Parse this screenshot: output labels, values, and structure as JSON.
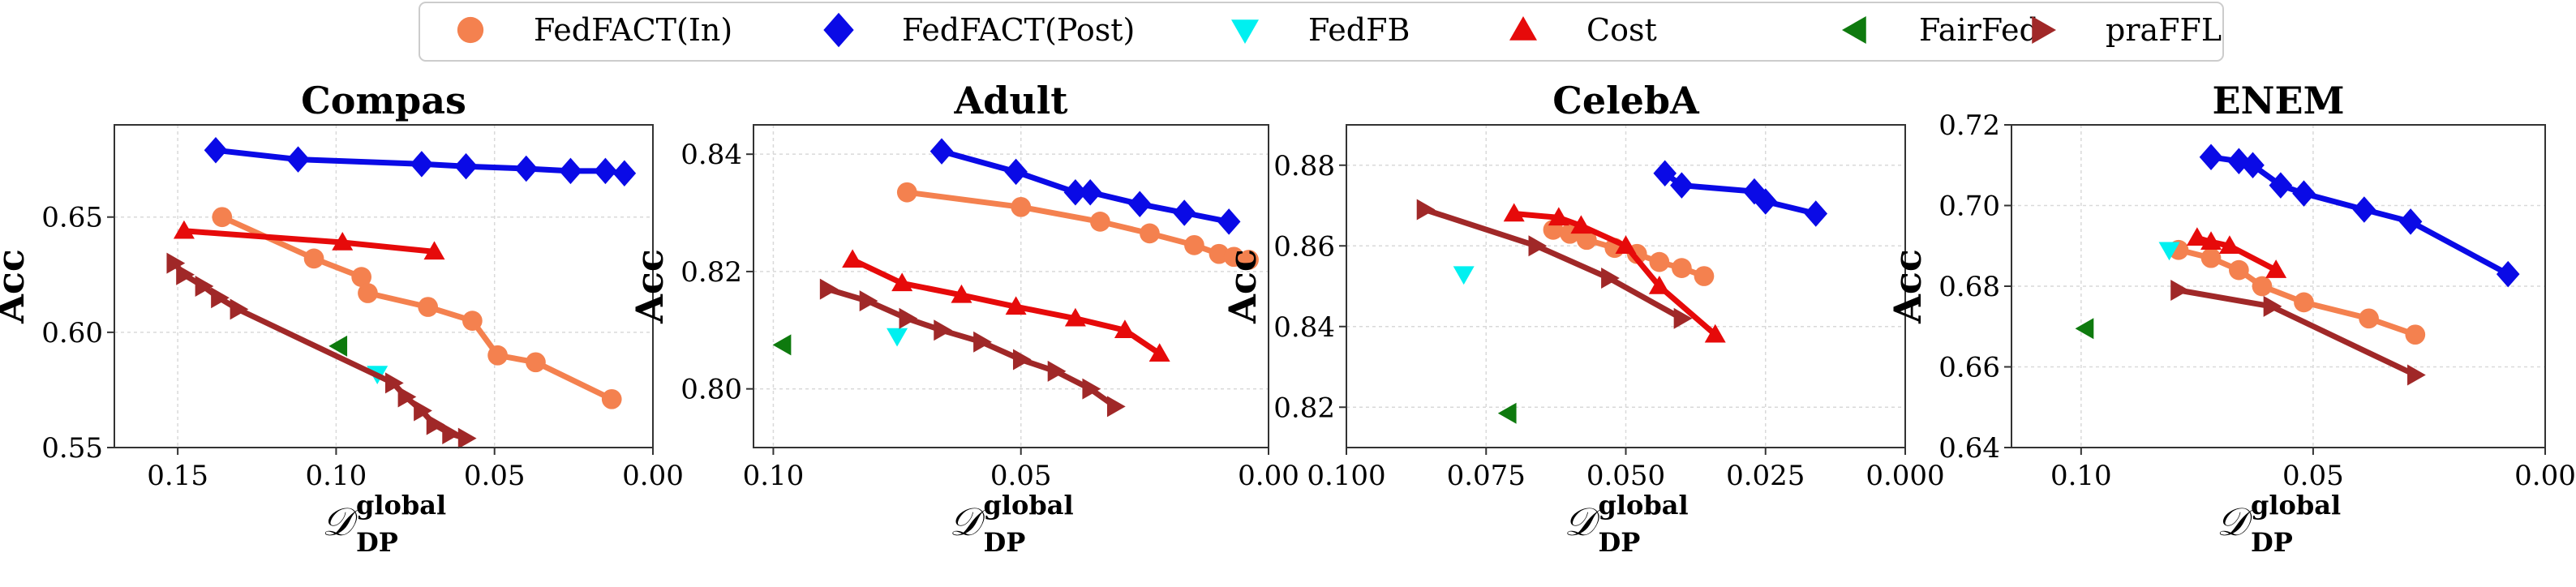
{
  "legend": [
    {
      "label": "FedFACT(In)",
      "marker": "circle",
      "color": "#F4814F"
    },
    {
      "label": "FedFACT(Post)",
      "marker": "diamond",
      "color": "#0A0AE6"
    },
    {
      "label": "FedFB",
      "marker": "triangle-down",
      "color": "#00F0F0"
    },
    {
      "label": "Cost",
      "marker": "triangle-up",
      "color": "#E60A0A"
    },
    {
      "label": "FairFed",
      "marker": "triangle-left",
      "color": "#0E7A0E"
    },
    {
      "label": "praFFL",
      "marker": "triangle-right",
      "color": "#A02828"
    }
  ],
  "axis_labels": {
    "y": "Acc",
    "x_main": "𝒟",
    "x_sup": "global",
    "x_sub": "DP"
  },
  "chart_data": [
    {
      "type": "line",
      "title": "Compas",
      "xlabel": "D_DP^global",
      "ylabel": "Acc",
      "xlim": [
        0.17,
        0.0
      ],
      "ylim": [
        0.55,
        0.69
      ],
      "xticks": [
        0.15,
        0.1,
        0.05,
        0.0
      ],
      "yticks": [
        0.55,
        0.6,
        0.65
      ],
      "xtick_labels": [
        "0.15",
        "0.10",
        "0.05",
        "0.00"
      ],
      "ytick_labels": [
        "0.55",
        "0.60",
        "0.65"
      ],
      "series": [
        {
          "name": "FedFACT(In)",
          "x": [
            0.136,
            0.107,
            0.092,
            0.09,
            0.071,
            0.057,
            0.049,
            0.037,
            0.013
          ],
          "y": [
            0.65,
            0.632,
            0.624,
            0.617,
            0.611,
            0.605,
            0.59,
            0.587,
            0.571
          ]
        },
        {
          "name": "FedFACT(Post)",
          "x": [
            0.138,
            0.112,
            0.073,
            0.059,
            0.04,
            0.026,
            0.015,
            0.009
          ],
          "y": [
            0.679,
            0.675,
            0.673,
            0.672,
            0.671,
            0.67,
            0.67,
            0.669
          ]
        },
        {
          "name": "FedFB",
          "x": [
            0.087
          ],
          "y": [
            0.582
          ]
        },
        {
          "name": "Cost",
          "x": [
            0.148,
            0.098,
            0.069
          ],
          "y": [
            0.644,
            0.639,
            0.635
          ]
        },
        {
          "name": "FairFed",
          "x": [
            0.099
          ],
          "y": [
            0.594
          ]
        },
        {
          "name": "praFFL",
          "x": [
            0.151,
            0.148,
            0.142,
            0.137,
            0.131,
            0.082,
            0.078,
            0.073,
            0.069,
            0.064,
            0.059
          ],
          "y": [
            0.63,
            0.625,
            0.62,
            0.615,
            0.61,
            0.578,
            0.572,
            0.566,
            0.56,
            0.556,
            0.554
          ]
        }
      ]
    },
    {
      "type": "line",
      "title": "Adult",
      "xlabel": "D_DP^global",
      "ylabel": "Acc",
      "xlim": [
        0.104,
        0.0
      ],
      "ylim": [
        0.79,
        0.845
      ],
      "xticks": [
        0.1,
        0.05,
        0.0
      ],
      "yticks": [
        0.8,
        0.82,
        0.84
      ],
      "xtick_labels": [
        "0.10",
        "0.05",
        "0.00"
      ],
      "ytick_labels": [
        "0.80",
        "0.82",
        "0.84"
      ],
      "series": [
        {
          "name": "FedFACT(In)",
          "x": [
            0.073,
            0.05,
            0.034,
            0.024,
            0.015,
            0.01,
            0.007,
            0.004
          ],
          "y": [
            0.8335,
            0.831,
            0.8285,
            0.8265,
            0.8245,
            0.823,
            0.8225,
            0.822
          ]
        },
        {
          "name": "FedFACT(Post)",
          "x": [
            0.066,
            0.051,
            0.039,
            0.036,
            0.026,
            0.017,
            0.008
          ],
          "y": [
            0.8405,
            0.837,
            0.8335,
            0.8335,
            0.8315,
            0.83,
            0.8285
          ]
        },
        {
          "name": "FedFB",
          "x": [
            0.075
          ],
          "y": [
            0.809
          ]
        },
        {
          "name": "Cost",
          "x": [
            0.084,
            0.074,
            0.062,
            0.051,
            0.039,
            0.029,
            0.022
          ],
          "y": [
            0.822,
            0.818,
            0.816,
            0.814,
            0.812,
            0.81,
            0.806
          ]
        },
        {
          "name": "FairFed",
          "x": [
            0.098
          ],
          "y": [
            0.8075
          ]
        },
        {
          "name": "praFFL",
          "x": [
            0.089,
            0.081,
            0.073,
            0.066,
            0.058,
            0.05,
            0.043,
            0.036,
            0.031
          ],
          "y": [
            0.817,
            0.815,
            0.812,
            0.81,
            0.808,
            0.805,
            0.803,
            0.8,
            0.797
          ]
        }
      ]
    },
    {
      "type": "line",
      "title": "CelebA",
      "xlabel": "D_DP^global",
      "ylabel": "Acc",
      "xlim": [
        0.1,
        0.0
      ],
      "ylim": [
        0.81,
        0.89
      ],
      "xticks": [
        0.1,
        0.075,
        0.05,
        0.025,
        0.0
      ],
      "yticks": [
        0.82,
        0.84,
        0.86,
        0.88
      ],
      "xtick_labels": [
        "0.100",
        "0.075",
        "0.050",
        "0.025",
        "0.000"
      ],
      "ytick_labels": [
        "0.82",
        "0.84",
        "0.86",
        "0.88"
      ],
      "series": [
        {
          "name": "FedFACT(In)",
          "x": [
            0.063,
            0.06,
            0.057,
            0.052,
            0.048,
            0.044,
            0.04,
            0.036
          ],
          "y": [
            0.864,
            0.863,
            0.8615,
            0.8595,
            0.858,
            0.856,
            0.8545,
            0.8525
          ]
        },
        {
          "name": "FedFACT(Post)",
          "x": [
            0.043,
            0.04,
            0.027,
            0.025,
            0.016
          ],
          "y": [
            0.878,
            0.875,
            0.8735,
            0.871,
            0.868
          ]
        },
        {
          "name": "FedFB",
          "x": [
            0.079
          ],
          "y": [
            0.853
          ]
        },
        {
          "name": "Cost",
          "x": [
            0.07,
            0.062,
            0.058,
            0.05,
            0.044,
            0.034
          ],
          "y": [
            0.868,
            0.867,
            0.865,
            0.86,
            0.85,
            0.838
          ]
        },
        {
          "name": "FairFed",
          "x": [
            0.071
          ],
          "y": [
            0.8185
          ]
        },
        {
          "name": "praFFL",
          "x": [
            0.086,
            0.066,
            0.053,
            0.04
          ],
          "y": [
            0.869,
            0.86,
            0.852,
            0.842
          ]
        }
      ]
    },
    {
      "type": "line",
      "title": "ENEM",
      "xlabel": "D_DP^global",
      "ylabel": "Acc",
      "xlim": [
        0.115,
        0.0
      ],
      "ylim": [
        0.64,
        0.72
      ],
      "xticks": [
        0.1,
        0.05,
        0.0
      ],
      "yticks": [
        0.64,
        0.66,
        0.68,
        0.7,
        0.72
      ],
      "xtick_labels": [
        "0.10",
        "0.05",
        "0.00"
      ],
      "ytick_labels": [
        "0.64",
        "0.66",
        "0.68",
        "0.70",
        "0.72"
      ],
      "series": [
        {
          "name": "FedFACT(In)",
          "x": [
            0.079,
            0.072,
            0.066,
            0.061,
            0.052,
            0.038,
            0.028
          ],
          "y": [
            0.689,
            0.687,
            0.684,
            0.68,
            0.676,
            0.672,
            0.668
          ]
        },
        {
          "name": "FedFACT(Post)",
          "x": [
            0.072,
            0.066,
            0.063,
            0.057,
            0.052,
            0.039,
            0.029,
            0.008
          ],
          "y": [
            0.712,
            0.711,
            0.71,
            0.705,
            0.703,
            0.699,
            0.696,
            0.683
          ]
        },
        {
          "name": "FedFB",
          "x": [
            0.081
          ],
          "y": [
            0.689
          ]
        },
        {
          "name": "Cost",
          "x": [
            0.075,
            0.072,
            0.068,
            0.058
          ],
          "y": [
            0.692,
            0.691,
            0.69,
            0.684
          ]
        },
        {
          "name": "FairFed",
          "x": [
            0.099
          ],
          "y": [
            0.6695
          ]
        },
        {
          "name": "praFFL",
          "x": [
            0.079,
            0.059,
            0.028
          ],
          "y": [
            0.679,
            0.675,
            0.658
          ]
        }
      ]
    }
  ]
}
